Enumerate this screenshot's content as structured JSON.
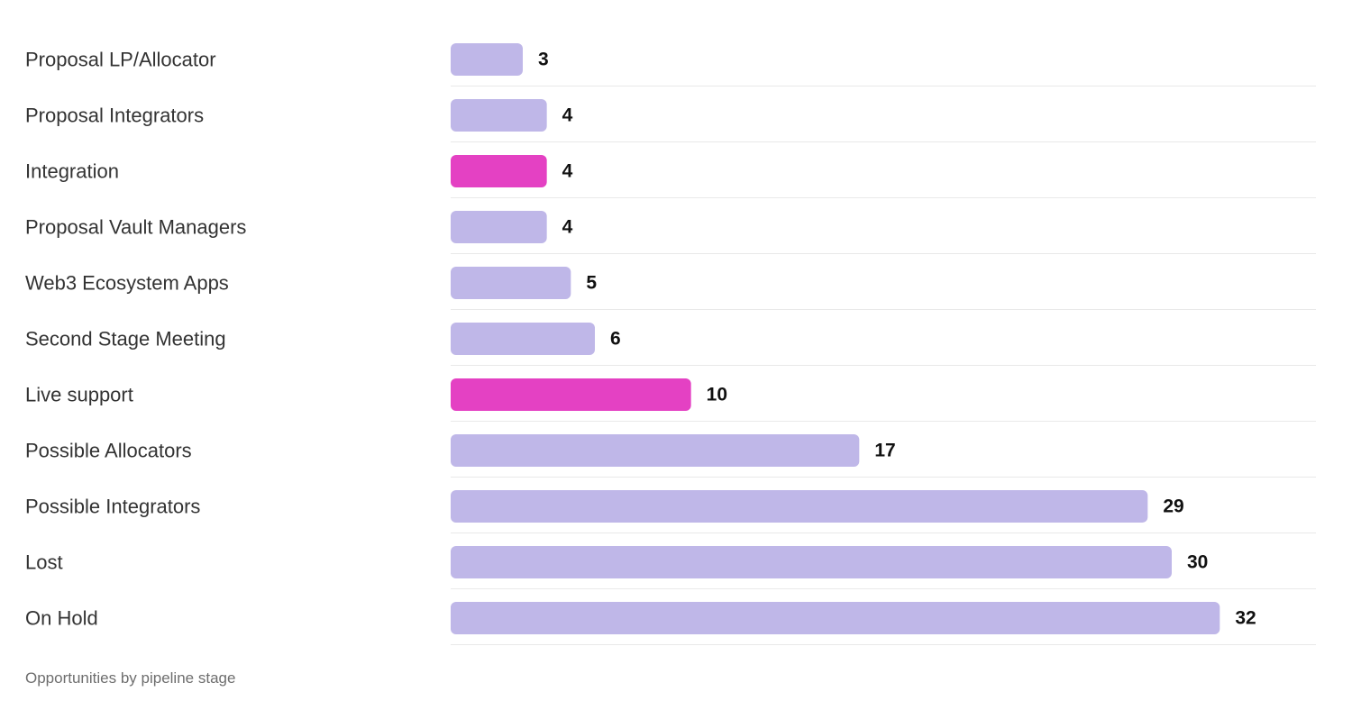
{
  "caption": "Opportunities by pipeline stage",
  "colors": {
    "default_bar": "#bfb7e8",
    "highlight_bar": "#e441c3"
  },
  "chart_data": {
    "type": "bar",
    "orientation": "horizontal",
    "categories": [
      "Proposal  LP/Allocator",
      "Proposal  Integrators",
      "Integration",
      "Proposal  Vault Managers",
      "Web3 Ecosystem Apps",
      "Second Stage Meeting",
      "Live support",
      "Possible Allocators",
      "Possible Integrators",
      "Lost",
      "On Hold"
    ],
    "values": [
      3,
      4,
      4,
      4,
      5,
      6,
      10,
      17,
      29,
      30,
      32
    ],
    "highlighted": [
      "Integration",
      "Live support"
    ],
    "xlim": [
      0,
      36
    ],
    "grid": false,
    "data_labels": true
  }
}
